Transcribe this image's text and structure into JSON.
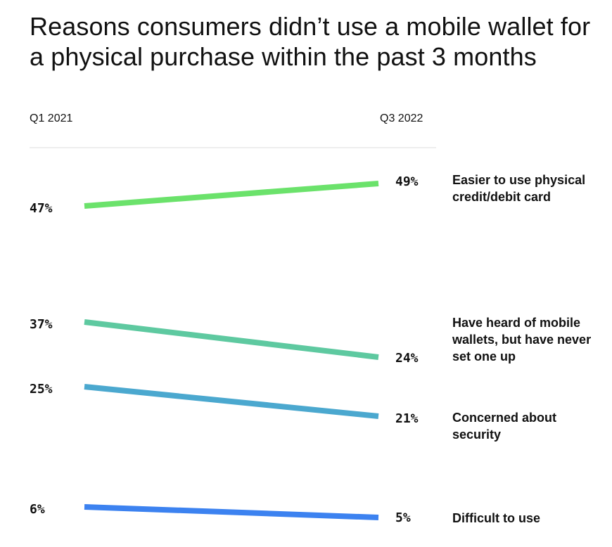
{
  "chart_data": {
    "type": "line",
    "title": "Reasons consumers didn’t use a mobile wallet for a physical purchase within the past 3 months",
    "x": [
      "Q1 2021",
      "Q3 2022"
    ],
    "series": [
      {
        "name": "Easier to use physical credit/debit card",
        "values": [
          47,
          49
        ],
        "labels": [
          "47%",
          "49%"
        ],
        "color": "#6be26b",
        "label_lines": [
          "Easier to use physical",
          "credit/debit card"
        ]
      },
      {
        "name": "Have heard of mobile wallets, but have never set one up",
        "values": [
          37,
          24
        ],
        "labels": [
          "37%",
          "24%"
        ],
        "color": "#5ec9a0",
        "label_lines": [
          "Have heard of mobile",
          "wallets, but have never",
          "set one up"
        ]
      },
      {
        "name": "Concerned about security",
        "values": [
          25,
          21
        ],
        "labels": [
          "25%",
          "21%"
        ],
        "color": "#4ba8cf",
        "label_lines": [
          "Concerned about",
          "security"
        ]
      },
      {
        "name": "Difficult to use",
        "values": [
          6,
          5
        ],
        "labels": [
          "6%",
          "5%"
        ],
        "color": "#3c82f0",
        "label_lines": [
          "Difficult to use"
        ]
      }
    ],
    "gridline_color": "#dddddd"
  }
}
